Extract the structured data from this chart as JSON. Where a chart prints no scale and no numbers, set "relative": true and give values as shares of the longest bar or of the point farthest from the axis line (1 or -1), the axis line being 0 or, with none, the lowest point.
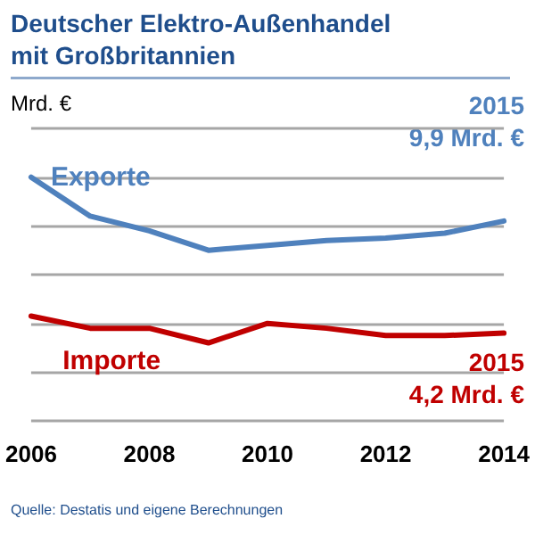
{
  "chart_data": {
    "type": "line",
    "title": "Deutscher Elektro-Außenhandel mit Großbritannien",
    "ylabel": "Mrd. €",
    "relative": true,
    "categories": [
      "2006",
      null,
      "2008",
      null,
      "2010",
      null,
      "2012",
      null,
      "2014"
    ],
    "series": [
      {
        "name": "Exporte",
        "color": "#4f81bd",
        "values": [
          1,
          0.84,
          0.78,
          0.7,
          0.72,
          0.74,
          0.75,
          0.77,
          0.82
        ]
      },
      {
        "name": "Importe",
        "color": "#c00000",
        "values": [
          0.43,
          0.38,
          0.38,
          0.32,
          0.4,
          0.38,
          0.35,
          0.35,
          0.36
        ]
      }
    ],
    "annotations": [
      "2015",
      "9,9 Mrd. €",
      "2015",
      "4,2 Mrd. €",
      "Quelle: Destatis und eigene Berechnungen"
    ],
    "grid": "y",
    "legend": false,
    "marker": "none",
    "line_style": "solid"
  }
}
